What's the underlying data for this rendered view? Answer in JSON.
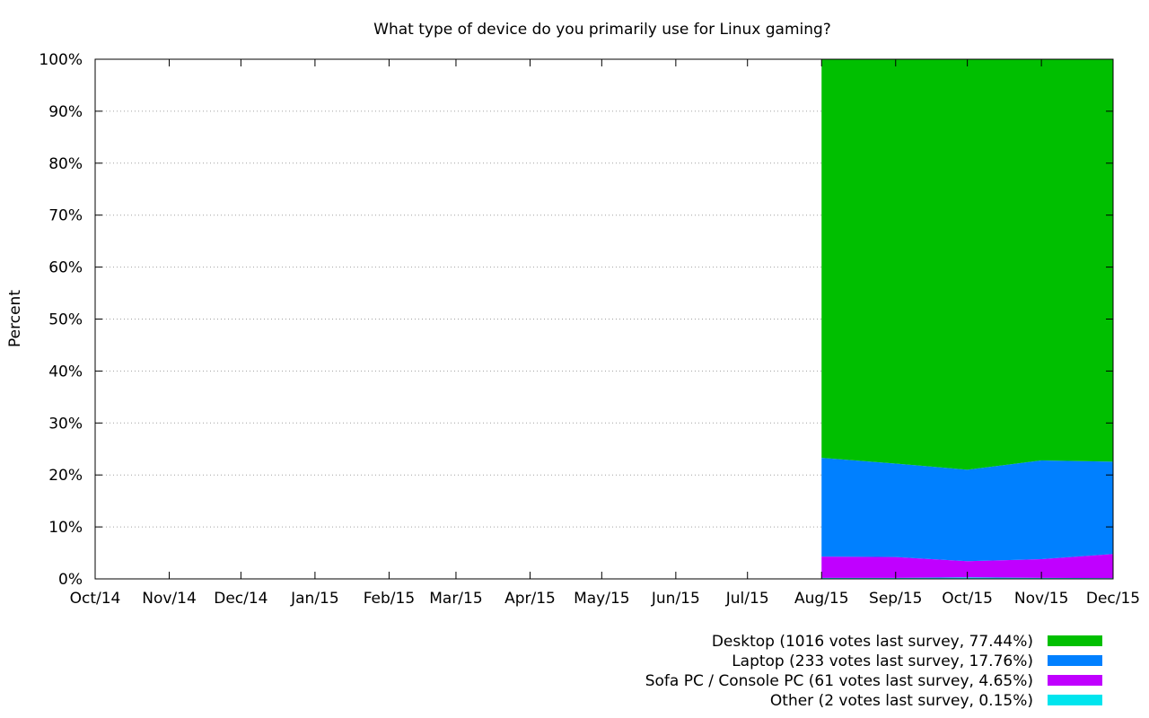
{
  "chart_data": {
    "type": "area",
    "stacked": true,
    "title": "What type of device do you primarily use for Linux gaming?",
    "xlabel": "",
    "ylabel": "Percent",
    "x_ticks": [
      "Oct/14",
      "Nov/14",
      "Dec/14",
      "Jan/15",
      "Feb/15",
      "Mar/15",
      "Apr/15",
      "May/15",
      "Jun/15",
      "Jul/15",
      "Aug/15",
      "Sep/15",
      "Oct/15",
      "Nov/15",
      "Dec/15"
    ],
    "x_range": [
      "2014-10-01",
      "2015-12-01"
    ],
    "y_ticks": [
      "0%",
      "10%",
      "20%",
      "30%",
      "40%",
      "50%",
      "60%",
      "70%",
      "80%",
      "90%",
      "100%"
    ],
    "ylim": [
      0,
      100
    ],
    "grid": "horizontal dotted",
    "legend_position": "bottom-right",
    "x": [
      "2015-08-01",
      "2015-09-01",
      "2015-10-01",
      "2015-11-01",
      "2015-12-01"
    ],
    "series": [
      {
        "name": "Other (2 votes last survey, 0.15%)",
        "color": "#00e5ee",
        "values": [
          0.2,
          0.2,
          0.3,
          0.2,
          0.15
        ]
      },
      {
        "name": "Sofa PC / Console PC (61 votes last survey, 4.65%)",
        "color": "#c000ff",
        "values": [
          4.1,
          4.0,
          3.1,
          3.6,
          4.65
        ]
      },
      {
        "name": "Laptop (233 votes last survey, 17.76%)",
        "color": "#0080ff",
        "values": [
          19.0,
          18.0,
          17.6,
          19.0,
          17.76
        ]
      },
      {
        "name": "Desktop (1016 votes last survey, 77.44%)",
        "color": "#00bf00",
        "values": [
          76.7,
          77.8,
          79.0,
          77.2,
          77.44
        ]
      }
    ],
    "legend_order": [
      3,
      2,
      1,
      0
    ]
  }
}
